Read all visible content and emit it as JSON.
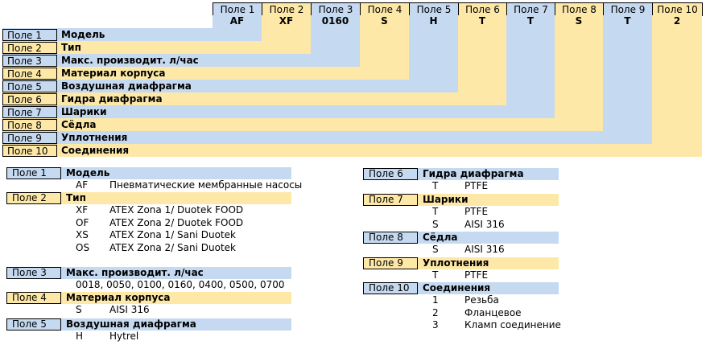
{
  "colors": {
    "blue": "#c5d9f1",
    "yellow": "#fde8a7"
  },
  "header": {
    "fields": [
      "Поле 1",
      "Поле 2",
      "Поле 3",
      "Поле 4",
      "Поле 5",
      "Поле 6",
      "Поле 7",
      "Поле 8",
      "Поле 9",
      "Поле 10"
    ],
    "values": [
      "AF",
      "XF",
      "0160",
      "S",
      "H",
      "T",
      "T",
      "S",
      "T",
      "2"
    ]
  },
  "rows": [
    {
      "label": "Поле 1",
      "name": "Модель"
    },
    {
      "label": "Поле 2",
      "name": "Тип"
    },
    {
      "label": "Поле 3",
      "name": "Макс. производит. л/час"
    },
    {
      "label": "Поле 4",
      "name": "Материал корпуса"
    },
    {
      "label": "Поле 5",
      "name": "Воздушная диафрагма"
    },
    {
      "label": "Поле 6",
      "name": "Гидра диафрагма"
    },
    {
      "label": "Поле 7",
      "name": "Шарики"
    },
    {
      "label": "Поле 8",
      "name": "Сёдла"
    },
    {
      "label": "Поле 9",
      "name": "Уплотнения"
    },
    {
      "label": "Поле 10",
      "name": "Соединения"
    }
  ],
  "legend_left": [
    {
      "label": "Поле 1",
      "title": "Модель",
      "options": [
        {
          "code": "AF",
          "text": "Пневматические мембранные насосы"
        }
      ]
    },
    {
      "label": "Поле 2",
      "title": "Тип",
      "options": [
        {
          "code": "XF",
          "text": "ATEX Zona 1/ Duotek FOOD"
        },
        {
          "code": "OF",
          "text": "ATEX Zona 2/ Duotek FOOD"
        },
        {
          "code": "XS",
          "text": "ATEX Zona 1/ Sani Duotek"
        },
        {
          "code": "OS",
          "text": "ATEX Zona 2/ Sani Duotek"
        }
      ]
    },
    {
      "label": "Поле 3",
      "title": "Макс. производит. л/час",
      "options": [
        {
          "code": "",
          "text": "0018, 0050, 0100, 0160, 0400, 0500, 0700"
        }
      ]
    },
    {
      "label": "Поле 4",
      "title": "Материал корпуса",
      "options": [
        {
          "code": "S",
          "text": "AISI 316"
        }
      ]
    },
    {
      "label": "Поле 5",
      "title": "Воздушная диафрагма",
      "options": [
        {
          "code": "H",
          "text": "Hytrel"
        }
      ]
    }
  ],
  "legend_right": [
    {
      "label": "Поле 6",
      "title": "Гидра диафрагма",
      "options": [
        {
          "code": "T",
          "text": "PTFE"
        }
      ]
    },
    {
      "label": "Поле 7",
      "title": "Шарики",
      "options": [
        {
          "code": "T",
          "text": "PTFE"
        },
        {
          "code": "S",
          "text": "AISI 316"
        }
      ]
    },
    {
      "label": "Поле 8",
      "title": "Сёдла",
      "options": [
        {
          "code": "S",
          "text": "AISI 316"
        }
      ]
    },
    {
      "label": "Поле 9",
      "title": "Уплотнения",
      "options": [
        {
          "code": "T",
          "text": "PTFE"
        }
      ]
    },
    {
      "label": "Поле 10",
      "title": "Соединения",
      "options": [
        {
          "code": "1",
          "text": "Резьба"
        },
        {
          "code": "2",
          "text": "Фланцевое"
        },
        {
          "code": "3",
          "text": "Кламп соединение"
        }
      ]
    }
  ]
}
